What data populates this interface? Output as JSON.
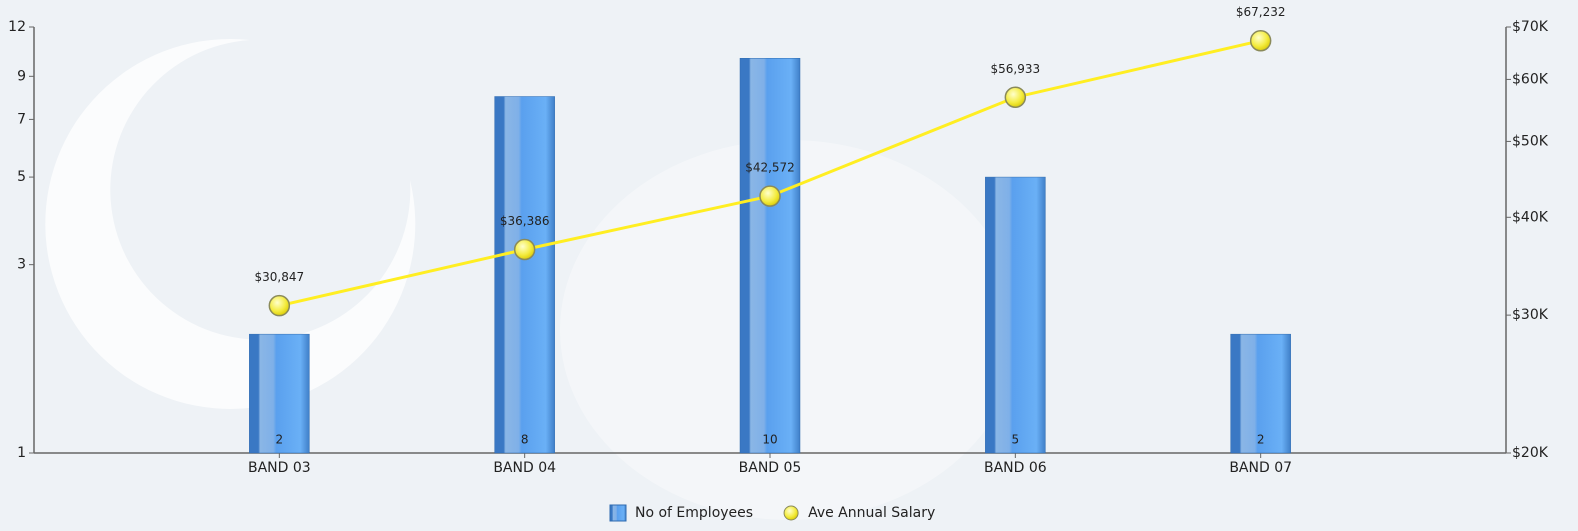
{
  "chart_data": {
    "type": "combo",
    "categories": [
      "BAND 03",
      "BAND 04",
      "BAND 05",
      "BAND 06",
      "BAND 07"
    ],
    "series": [
      {
        "name": "No of Employees",
        "type": "bar",
        "color": "#4a90e2",
        "values": [
          2,
          8,
          10,
          5,
          2
        ]
      },
      {
        "name": "Ave Annual Salary",
        "type": "line",
        "axis": "y2",
        "color": "#ffee22",
        "values": [
          30847,
          36386,
          42572,
          56933,
          67232
        ],
        "value_labels": [
          "$30,847",
          "$36,386",
          "$42,572",
          "$56,933",
          "$67,232"
        ]
      }
    ],
    "ylim": [
      1,
      12
    ],
    "yticks": [
      1,
      3,
      5,
      7,
      9,
      12
    ],
    "y2lim": [
      20000,
      70000
    ],
    "y2ticks": [
      {
        "value": 20000,
        "label": "$20K"
      },
      {
        "value": 30000,
        "label": "$30K"
      },
      {
        "value": 40000,
        "label": "$40K"
      },
      {
        "value": 50000,
        "label": "$50K"
      },
      {
        "value": 60000,
        "label": "$60K"
      },
      {
        "value": 70000,
        "label": "$70K"
      }
    ],
    "log_scale": true,
    "legend": "bottom"
  }
}
